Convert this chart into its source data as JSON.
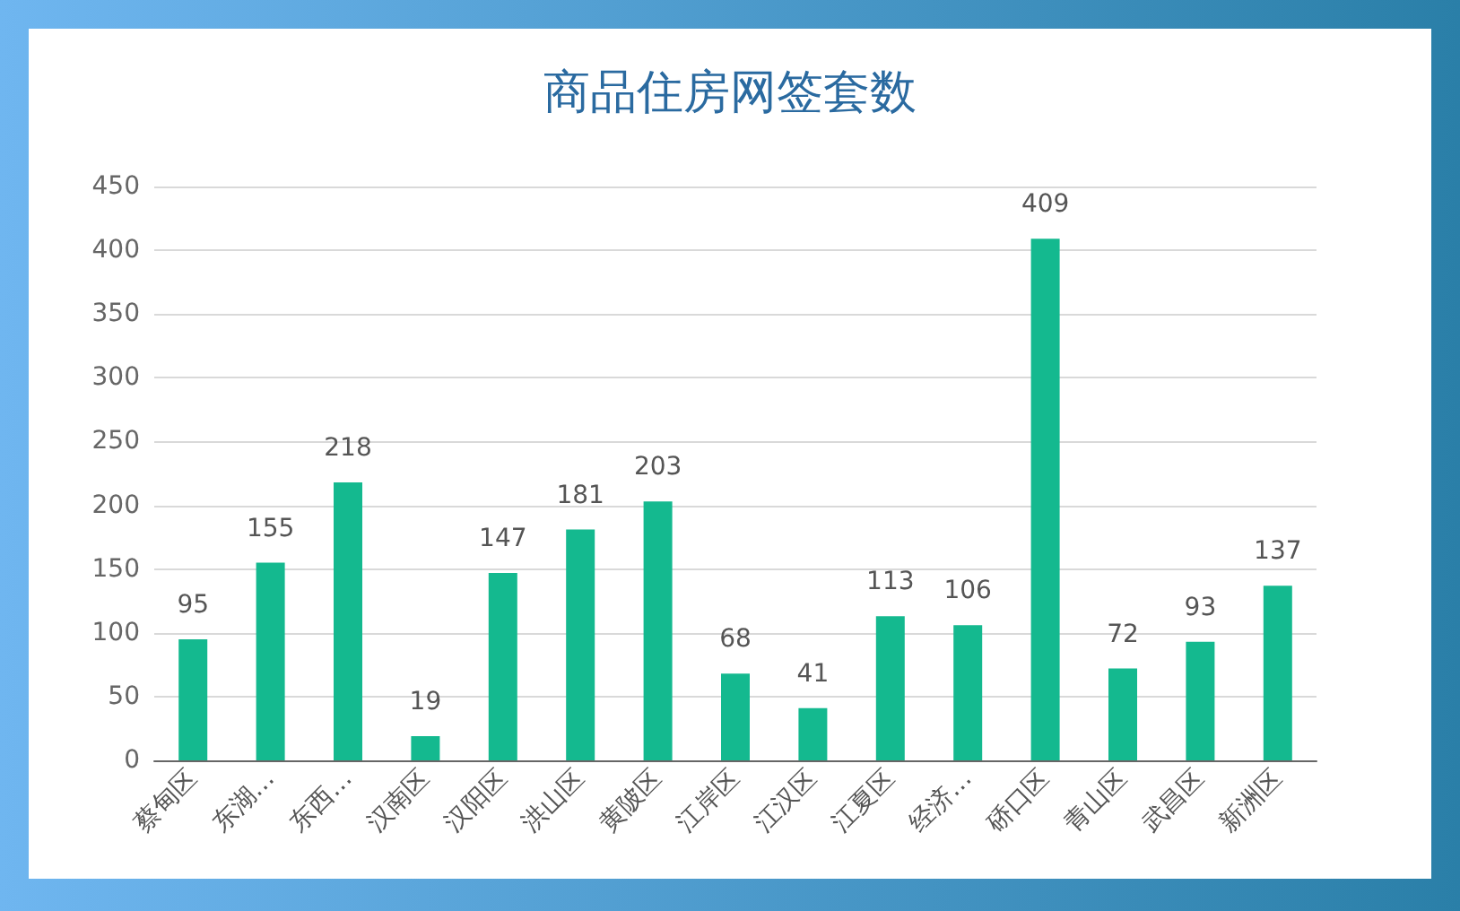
{
  "chart_data": {
    "type": "bar",
    "title": "商品住房网签套数",
    "categories": [
      "蔡甸区",
      "东湖…",
      "东西…",
      "汉南区",
      "汉阳区",
      "洪山区",
      "黄陂区",
      "江岸区",
      "江汉区",
      "江夏区",
      "经济…",
      "硚口区",
      "青山区",
      "武昌区",
      "新洲区"
    ],
    "values": [
      95,
      155,
      218,
      19,
      147,
      181,
      203,
      68,
      41,
      113,
      106,
      409,
      72,
      93,
      137
    ],
    "color": "#14b98f",
    "ylim": [
      0,
      450
    ],
    "yticks": [
      0,
      50,
      100,
      150,
      200,
      250,
      300,
      350,
      400,
      450
    ],
    "grid": "y",
    "data_labels": true
  }
}
